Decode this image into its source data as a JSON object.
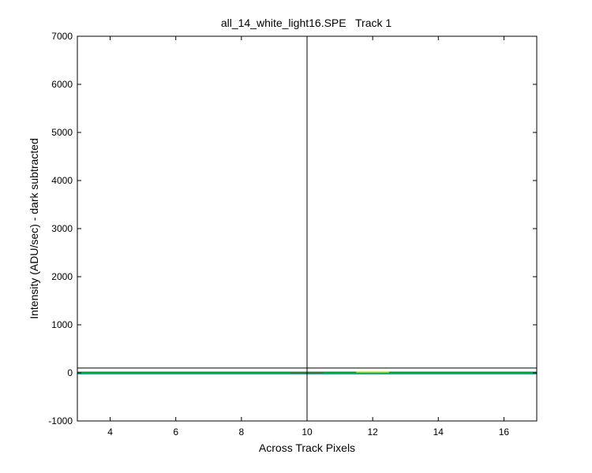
{
  "chart_data": {
    "type": "line",
    "title": "all_14_white_light16.SPE   Track 1",
    "xlabel": "Across Track Pixels",
    "ylabel": "Intensity (ADU/sec) - dark subtracted",
    "xlim": [
      3,
      17
    ],
    "ylim": [
      -1000,
      7000
    ],
    "xticks": [
      4,
      6,
      8,
      10,
      12,
      14,
      16
    ],
    "yticks": [
      -1000,
      0,
      1000,
      2000,
      3000,
      4000,
      5000,
      6000,
      7000
    ],
    "grid": false,
    "series": [
      {
        "color": "#000080",
        "x": [
          3,
          4,
          5,
          6,
          7,
          8,
          9,
          10,
          11,
          12,
          13,
          14,
          15,
          16,
          17
        ],
        "y": [
          10,
          10,
          10,
          10,
          10,
          10,
          10,
          10,
          10,
          10,
          10,
          10,
          10,
          10,
          10
        ]
      },
      {
        "color": "#00a000",
        "x": [
          3,
          4,
          5,
          6,
          7,
          8,
          9,
          10,
          11,
          12,
          13,
          14,
          15,
          16,
          17
        ],
        "y": [
          5,
          5,
          5,
          5,
          5,
          5,
          5,
          5,
          5,
          5,
          5,
          5,
          5,
          5,
          5
        ]
      },
      {
        "color": "#cccc00",
        "x": [
          11.5,
          12.5
        ],
        "y": [
          15,
          15
        ]
      },
      {
        "color": "#c00000",
        "x": [
          9.5,
          10.5
        ],
        "y": [
          -10,
          -10
        ]
      },
      {
        "color": "#00c0c0",
        "x": [
          3,
          4,
          5,
          6,
          7,
          8,
          9,
          10,
          11,
          12,
          13,
          14,
          15,
          16,
          17
        ],
        "y": [
          -20,
          -20,
          -20,
          -20,
          -20,
          -20,
          -20,
          -20,
          -20,
          -20,
          -20,
          -20,
          -20,
          -20,
          -20
        ]
      }
    ],
    "reference_lines": [
      {
        "orientation": "horizontal",
        "value": 100,
        "color": "#000000"
      },
      {
        "orientation": "vertical",
        "value": 10,
        "color": "#000000"
      }
    ]
  }
}
